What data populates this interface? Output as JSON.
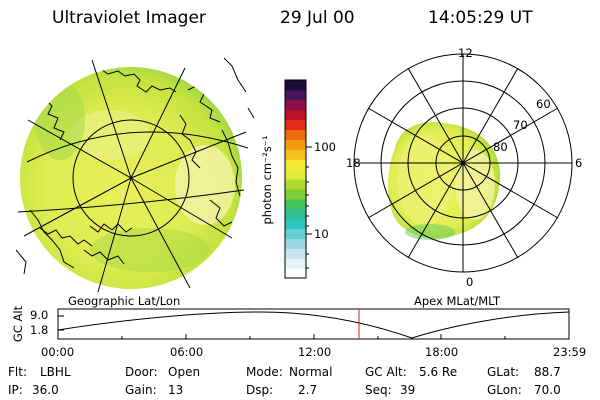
{
  "header": {
    "title": "Ultraviolet Imager",
    "date": "29 Jul 00",
    "time": "14:05:29 UT"
  },
  "colorbar": {
    "unit_label": "photon cm⁻²s⁻¹",
    "tick_100": "100",
    "tick_10": "10",
    "colors": [
      "#ffffff",
      "#e6f3f5",
      "#c4e6ec",
      "#9ad6e3",
      "#63cfd9",
      "#2dc4c0",
      "#2ebf8e",
      "#43c45a",
      "#7fcc3a",
      "#b3d92e",
      "#ddea3e",
      "#f4ea36",
      "#f3c21f",
      "#f59a10",
      "#f06b12",
      "#e02b1b",
      "#b8122a",
      "#8c0f4a",
      "#4a1360",
      "#1a0d3a"
    ]
  },
  "geo_panel": {
    "label": "Geographic Lat/Lon"
  },
  "apex_panel": {
    "label": "Apex MLat/MLT",
    "mlt_12": "12",
    "mlt_18": "18",
    "mlt_6": "6",
    "mlt_0": "0",
    "lat_60": "60",
    "lat_70": "70",
    "lat_80": "80"
  },
  "altitude_plot": {
    "ylabel": "GC Alt",
    "ytick_top": "9.0",
    "ytick_bottom": "1.8",
    "xticks": [
      "00:00",
      "06:00",
      "12:00",
      "18:00",
      "23:59"
    ]
  },
  "status": {
    "flt_label": "Flt:",
    "flt_value": "LBHL",
    "ip_label": "IP:",
    "ip_value": "36.0",
    "door_label": "Door:",
    "door_value": "Open",
    "gain_label": "Gain:",
    "gain_value": "13",
    "mode_label": "Mode:",
    "mode_value": "Normal",
    "dsp_label": "Dsp:",
    "dsp_value": "2.7",
    "gcalt_label": "GC Alt:",
    "gcalt_value": "5.6 Re",
    "seq_label": "Seq:",
    "seq_value": "39",
    "glat_label": "GLat:",
    "glat_value": "88.7",
    "glon_label": "GLon:",
    "glon_value": "70.0"
  },
  "accent": {
    "image_yellow": "#e3ee52",
    "image_green": "#b5de3a",
    "marker_red": "#cc2222"
  }
}
